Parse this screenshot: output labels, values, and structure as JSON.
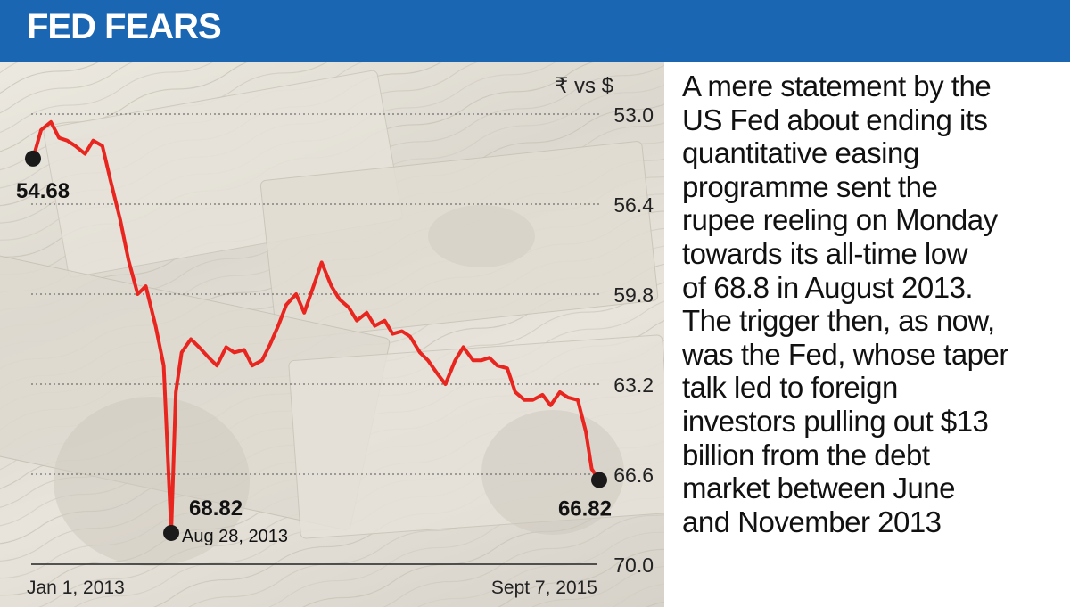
{
  "title": "FED FEARS",
  "description_lines": [
    "A mere statement by the",
    "US Fed about ending its",
    "quantitative easing",
    "programme sent the",
    "rupee reeling on Monday",
    "towards its all-time low",
    "of 68.8 in August 2013.",
    "The trigger then, as now,",
    "was the Fed, whose taper",
    "talk led to foreign",
    "investors pulling out $13",
    "billion from the debt",
    "market between June",
    "and November 2013"
  ],
  "colors": {
    "header": "#1a66b3",
    "line": "#e8261f",
    "marker": "#1a1a1a"
  },
  "chart_data": {
    "type": "line",
    "series_label": "₹ vs $",
    "ylim": [
      53.0,
      70.0
    ],
    "y_inverted": true,
    "yticks": [
      "53.0",
      "56.4",
      "59.8",
      "63.2",
      "66.6",
      "70.0"
    ],
    "x_start_label": "Jan 1, 2013",
    "x_end_label": "Sept 7, 2015",
    "x": [
      "2013-01-01",
      "2013-01-15",
      "2013-02-01",
      "2013-02-15",
      "2013-03-01",
      "2013-03-15",
      "2013-04-01",
      "2013-04-15",
      "2013-05-01",
      "2013-05-15",
      "2013-06-01",
      "2013-06-15",
      "2013-07-01",
      "2013-07-15",
      "2013-08-01",
      "2013-08-15",
      "2013-08-28",
      "2013-09-05",
      "2013-09-15",
      "2013-10-01",
      "2013-10-15",
      "2013-11-01",
      "2013-11-15",
      "2013-12-01",
      "2013-12-15",
      "2014-01-01",
      "2014-01-15",
      "2014-02-01",
      "2014-02-15",
      "2014-03-01",
      "2014-03-15",
      "2014-04-01",
      "2014-04-15",
      "2014-05-01",
      "2014-05-15",
      "2014-06-01",
      "2014-06-15",
      "2014-07-01",
      "2014-07-15",
      "2014-08-01",
      "2014-08-15",
      "2014-09-01",
      "2014-09-15",
      "2014-10-01",
      "2014-10-15",
      "2014-11-01",
      "2014-11-15",
      "2014-12-01",
      "2014-12-15",
      "2015-01-01",
      "2015-01-15",
      "2015-02-01",
      "2015-02-15",
      "2015-03-01",
      "2015-03-15",
      "2015-04-01",
      "2015-04-15",
      "2015-05-01",
      "2015-05-15",
      "2015-06-01",
      "2015-06-15",
      "2015-07-01",
      "2015-07-15",
      "2015-08-01",
      "2015-08-15",
      "2015-08-25",
      "2015-09-07"
    ],
    "y": [
      54.68,
      53.6,
      53.3,
      53.9,
      54.0,
      54.2,
      54.5,
      54.0,
      54.2,
      55.5,
      57.0,
      58.5,
      59.8,
      59.5,
      61.0,
      62.5,
      68.82,
      63.5,
      62.0,
      61.5,
      61.8,
      62.2,
      62.5,
      61.8,
      62.0,
      61.9,
      62.5,
      62.3,
      61.7,
      61.0,
      60.2,
      59.8,
      60.5,
      59.5,
      58.6,
      59.5,
      60.0,
      60.3,
      60.8,
      60.5,
      61.0,
      60.8,
      61.3,
      61.2,
      61.4,
      62.0,
      62.3,
      62.8,
      63.2,
      62.3,
      61.8,
      62.3,
      62.3,
      62.2,
      62.5,
      62.6,
      63.5,
      63.8,
      63.8,
      63.6,
      64.0,
      63.5,
      63.7,
      63.8,
      65.0,
      66.4,
      66.82
    ],
    "annotations": [
      {
        "label": "54.68",
        "date": "2013-01-01",
        "value": 54.68
      },
      {
        "label": "68.82",
        "date_label": "Aug 28, 2013",
        "date": "2013-08-28",
        "value": 68.82
      },
      {
        "label": "66.82",
        "date": "2015-09-07",
        "value": 66.82
      }
    ]
  }
}
